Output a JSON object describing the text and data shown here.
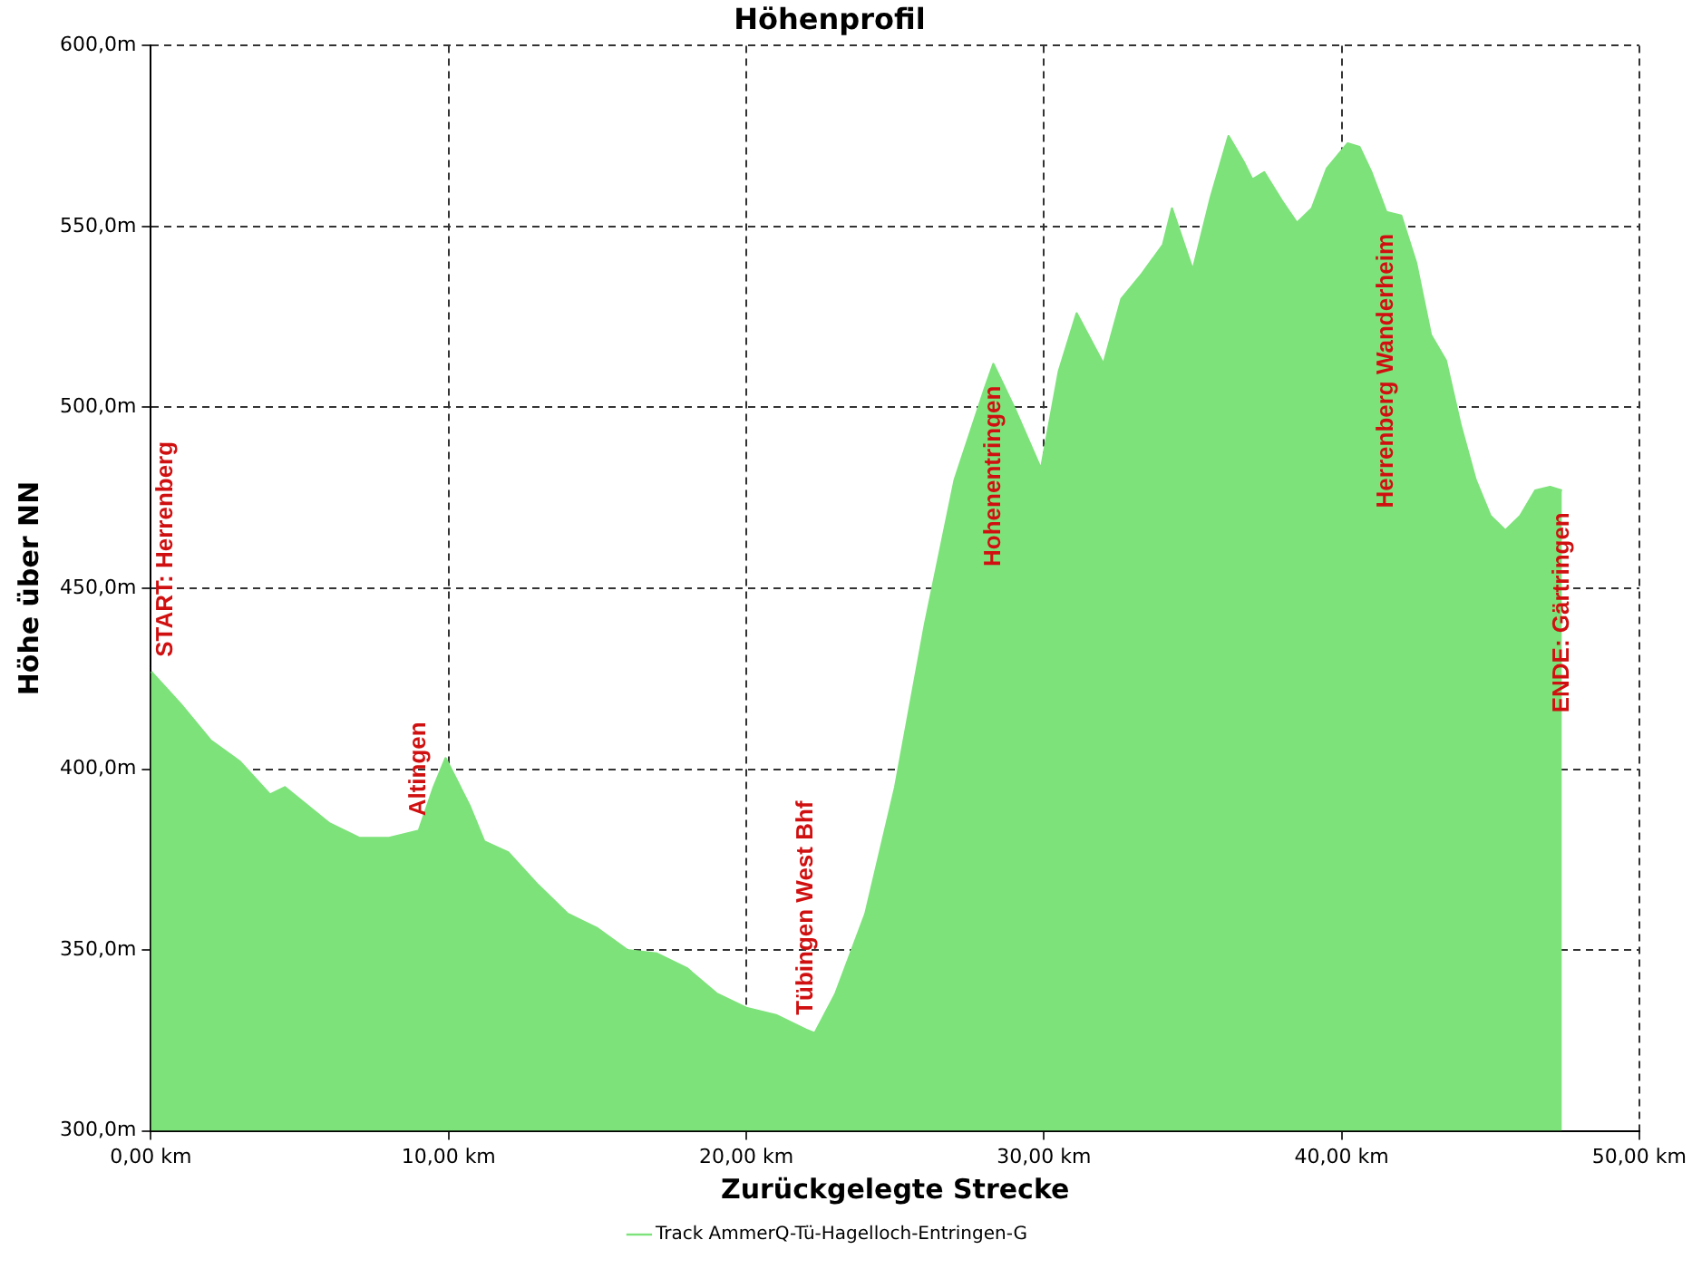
{
  "chart_data": {
    "type": "area",
    "title": "Höhenprofil",
    "xlabel": "Zurückgelegte Strecke",
    "ylabel": "Höhe über NN",
    "xlim": [
      0,
      50
    ],
    "xticks": [
      {
        "value": 0,
        "label": "0,00 km"
      },
      {
        "value": 10,
        "label": "10,00 km"
      },
      {
        "value": 20,
        "label": "20,00 km"
      },
      {
        "value": 30,
        "label": "30,00 km"
      },
      {
        "value": 40,
        "label": "40,00 km"
      },
      {
        "value": 50,
        "label": "50,00 km"
      }
    ],
    "ylim": [
      300,
      600
    ],
    "yticks": [
      {
        "value": 300,
        "label": "300,0m"
      },
      {
        "value": 350,
        "label": "350,0m"
      },
      {
        "value": 400,
        "label": "400,0m"
      },
      {
        "value": 450,
        "label": "450,0m"
      },
      {
        "value": 500,
        "label": "500,0m"
      },
      {
        "value": 550,
        "label": "550,0m"
      },
      {
        "value": 600,
        "label": "600,0m"
      }
    ],
    "x": [
      0,
      1,
      2,
      3,
      4,
      4.5,
      6,
      7,
      8,
      9,
      9.5,
      9.9,
      10.7,
      11.2,
      12,
      13,
      14,
      15,
      16,
      17,
      18,
      19,
      20,
      21,
      22,
      22.3,
      23,
      24,
      25,
      26,
      27,
      28,
      28.3,
      29,
      29.9,
      30.5,
      31.1,
      32,
      32.6,
      33.3,
      34,
      34.3,
      35,
      35.6,
      36.2,
      36.7,
      37,
      37.4,
      38,
      38.5,
      39,
      39.5,
      40.2,
      40.6,
      41,
      41.5,
      42,
      42.5,
      43,
      43.5,
      44,
      44.5,
      45,
      45.5,
      46,
      46.5,
      47,
      47.4
    ],
    "series": [
      {
        "name": "Track AmmerQ-Tü-Hagelloch-Entringen-G",
        "color": "#7de27a",
        "values": [
          427,
          418,
          408,
          402,
          393,
          395,
          385,
          381,
          381,
          383,
          395,
          403,
          390,
          380,
          377,
          368,
          360,
          356,
          350,
          349,
          345,
          338,
          334,
          332,
          328,
          327,
          338,
          360,
          395,
          440,
          480,
          505,
          512,
          500,
          483,
          510,
          526,
          512,
          530,
          537,
          545,
          555,
          538,
          558,
          575,
          568,
          563,
          565,
          557,
          551,
          555,
          566,
          573,
          572,
          565,
          554,
          553,
          540,
          520,
          513,
          495,
          480,
          470,
          466,
          470,
          477,
          478,
          477
        ]
      }
    ],
    "annotations": [
      {
        "text": "START: Herrenberg",
        "x": 0,
        "y": 427
      },
      {
        "text": "Altingen",
        "x": 9,
        "y": 383
      },
      {
        "text": "Tübingen West Bhf",
        "x": 22,
        "y": 328
      },
      {
        "text": "Hohenentringen",
        "x": 28.3,
        "y": 512
      },
      {
        "text": "Herrenberg Wanderheim",
        "x": 41.5,
        "y": 554
      },
      {
        "text": "ENDE: Gärtringen",
        "x": 47.4,
        "y": 477
      }
    ],
    "grid": true,
    "legend": "bottom",
    "line_style": "solid",
    "marker": "none"
  }
}
